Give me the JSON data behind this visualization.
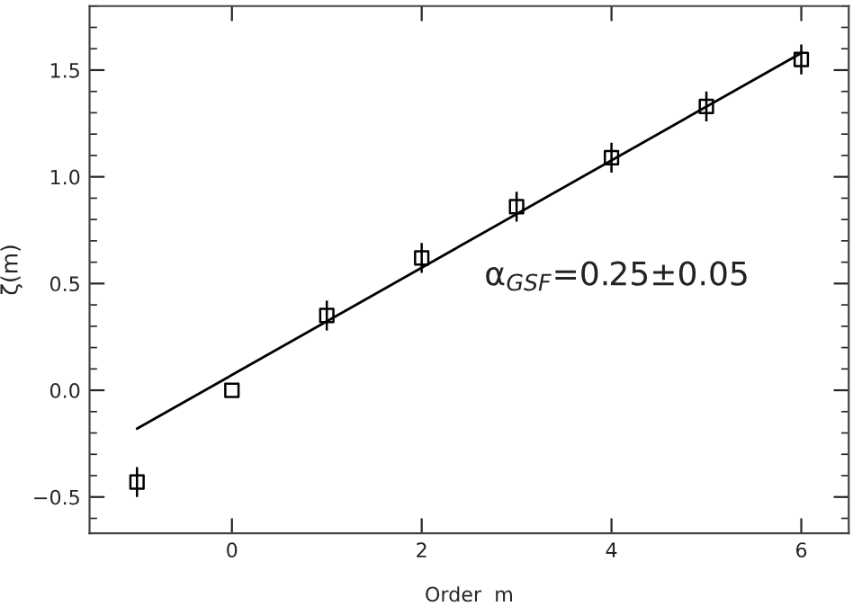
{
  "chart_data": {
    "type": "scatter",
    "xlabel": "Order  m",
    "ylabel": "ζ(m)",
    "marker": "square",
    "grid": false,
    "xlim": [
      -1.5,
      6.5
    ],
    "xticks": [
      0,
      2,
      4,
      6
    ],
    "ylim": [
      -0.67,
      1.8
    ],
    "yticks": [
      {
        "value": -0.5,
        "label": "−0.5"
      },
      {
        "value": 0,
        "label": "0.0"
      },
      {
        "value": 0.5,
        "label": "0.5"
      },
      {
        "value": 1,
        "label": "1.0"
      },
      {
        "value": 1.5,
        "label": "1.5"
      }
    ],
    "series": [
      {
        "color": "#000000",
        "x": [
          -1,
          0,
          1,
          2,
          3,
          4,
          5,
          6
        ],
        "values": [
          -0.43,
          0.0,
          0.35,
          0.62,
          0.86,
          1.09,
          1.33,
          1.55
        ],
        "errors": [
          0.07,
          null,
          0.07,
          0.07,
          0.07,
          0.07,
          0.07,
          0.07
        ]
      },
      {
        "type": "line",
        "color": "#000000",
        "x": [
          -1,
          6
        ],
        "values": [
          -0.18,
          1.58
        ],
        "marker": "none",
        "line_style": "solid"
      }
    ],
    "annotations": [
      "α$_{GSF}$=0.25±0.05"
    ]
  }
}
